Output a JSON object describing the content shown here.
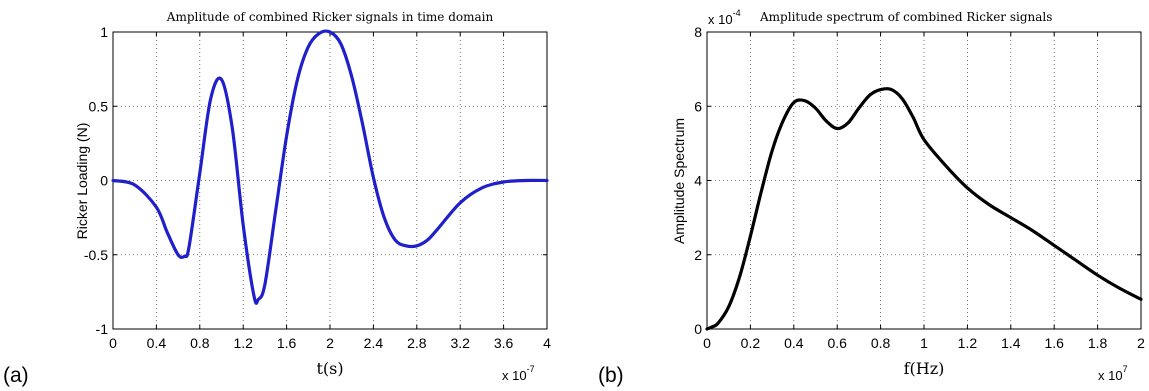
{
  "chart_data": [
    {
      "type": "line",
      "panel_label": "(a)",
      "title": "Amplitude of combined Ricker signals in time domain",
      "xlabel": "t(s)",
      "ylabel": "Ricker Loading (N)",
      "x_tick_labels": [
        "0",
        "0.4",
        "0.8",
        "1.2",
        "1.6",
        "2",
        "2.4",
        "2.8",
        "3.2",
        "3.6",
        "4"
      ],
      "y_tick_labels": [
        "-1",
        "-0.5",
        "0",
        "0.5",
        "1"
      ],
      "x_exponent": "x 10",
      "x_exponent_power": "-7",
      "xlim": [
        0,
        4e-07
      ],
      "ylim": [
        -1,
        1
      ],
      "grid": true,
      "line_color": "#1f1fcc",
      "series": [
        {
          "x": [
            0,
            2e-08,
            4e-08,
            5e-08,
            6e-08,
            6.6e-08,
            7e-08,
            8e-08,
            9e-08,
            1e-07,
            1.1e-07,
            1.2e-07,
            1.3e-07,
            1.34e-07,
            1.4e-07,
            1.5e-07,
            1.6e-07,
            1.7e-07,
            1.8e-07,
            1.9e-07,
            2e-07,
            2.1e-07,
            2.2e-07,
            2.3e-07,
            2.4e-07,
            2.5e-07,
            2.6e-07,
            2.7e-07,
            2.8e-07,
            2.9e-07,
            3e-07,
            3.2e-07,
            3.4e-07,
            3.6e-07,
            3.8e-07,
            4e-07
          ],
          "y": [
            0,
            -0.03,
            -0.18,
            -0.35,
            -0.5,
            -0.51,
            -0.45,
            0.05,
            0.55,
            0.68,
            0.35,
            -0.3,
            -0.78,
            -0.8,
            -0.7,
            -0.2,
            0.3,
            0.68,
            0.9,
            0.99,
            1.0,
            0.92,
            0.7,
            0.38,
            0.02,
            -0.25,
            -0.4,
            -0.44,
            -0.44,
            -0.4,
            -0.32,
            -0.15,
            -0.05,
            -0.01,
            0.0,
            0.0
          ]
        }
      ]
    },
    {
      "type": "line",
      "panel_label": "(b)",
      "title": "Amplitude spectrum of combined Ricker signals",
      "xlabel": "f(Hz)",
      "ylabel": "Amplitude Spectrum",
      "x_tick_labels": [
        "0",
        "0.2",
        "0.4",
        "0.6",
        "0.8",
        "1",
        "1.2",
        "1.4",
        "1.6",
        "1.8",
        "2"
      ],
      "y_tick_labels": [
        "0",
        "2",
        "4",
        "6",
        "8"
      ],
      "x_exponent": "x 10",
      "x_exponent_power": "7",
      "y_exponent": "x 10",
      "y_exponent_power": "-4",
      "xlim": [
        0,
        20000000.0
      ],
      "ylim": [
        0,
        0.0008
      ],
      "grid": true,
      "line_color": "#000000",
      "series": [
        {
          "x": [
            0,
            200000.0,
            500000.0,
            1000000.0,
            1500000.0,
            2000000.0,
            2500000.0,
            3000000.0,
            3500000.0,
            4000000.0,
            4500000.0,
            5000000.0,
            5500000.0,
            6000000.0,
            6500000.0,
            7000000.0,
            7500000.0,
            8000000.0,
            8500000.0,
            9000000.0,
            9500000.0,
            10000000.0,
            11000000.0,
            12000000.0,
            13000000.0,
            14000000.0,
            15000000.0,
            16000000.0,
            17000000.0,
            18000000.0,
            19000000.0,
            20000000.0
          ],
          "y": [
            0,
            5e-06,
            1.5e-05,
            6e-05,
            0.00014,
            0.00025,
            0.00037,
            0.00048,
            0.00056,
            0.00061,
            0.000615,
            0.000595,
            0.00056,
            0.00054,
            0.000555,
            0.000595,
            0.00063,
            0.000645,
            0.000645,
            0.00062,
            0.00057,
            0.00051,
            0.00044,
            0.00038,
            0.000335,
            0.0003,
            0.000265,
            0.000225,
            0.000185,
            0.000145,
            0.00011,
            8e-05
          ]
        }
      ]
    }
  ]
}
